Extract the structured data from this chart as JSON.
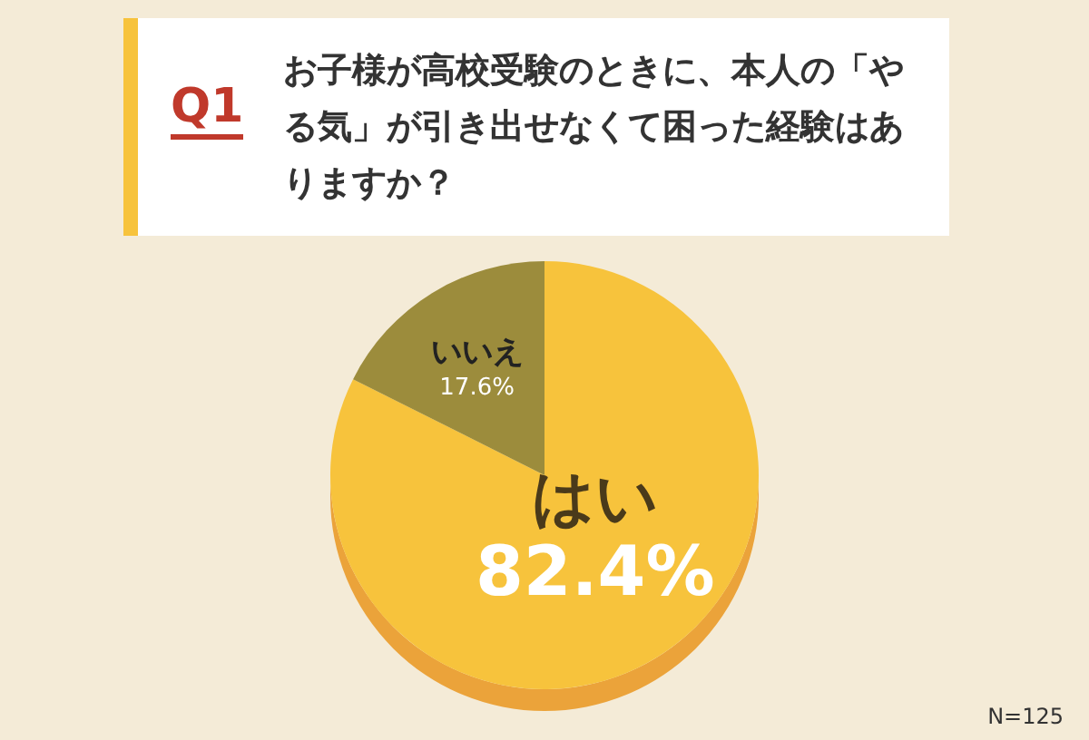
{
  "chart_data": {
    "type": "pie",
    "title": "お子様が高校受験のときに、本人の「やる気」が引き出せなくて困った経験はありますか？",
    "subtitle": "Q1",
    "categories": [
      "はい",
      "いいえ"
    ],
    "values": [
      82.4,
      17.6
    ],
    "colors": [
      "#f7c33c",
      "#9c8c3c"
    ],
    "value_labels": [
      "82.4%",
      "17.6%"
    ],
    "annotations": [
      "N=125"
    ]
  }
}
